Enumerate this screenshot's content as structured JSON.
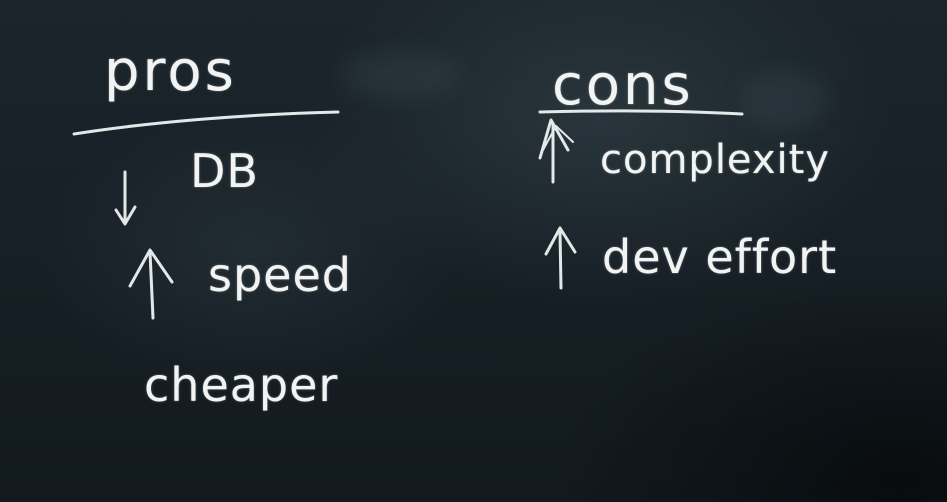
{
  "pros": {
    "heading": "pros",
    "items": [
      {
        "label": "DB",
        "arrow": "down-arrow-icon"
      },
      {
        "label": "speed",
        "arrow": "up-arrow-icon"
      },
      {
        "label": "cheaper",
        "arrow": null
      }
    ]
  },
  "cons": {
    "heading": "cons",
    "items": [
      {
        "label": "complexity",
        "arrow": "up-arrow-icon"
      },
      {
        "label": "dev effort",
        "arrow": "up-arrow-icon"
      }
    ]
  },
  "colors": {
    "board": "#172026",
    "chalk": "#f1f4f3"
  }
}
